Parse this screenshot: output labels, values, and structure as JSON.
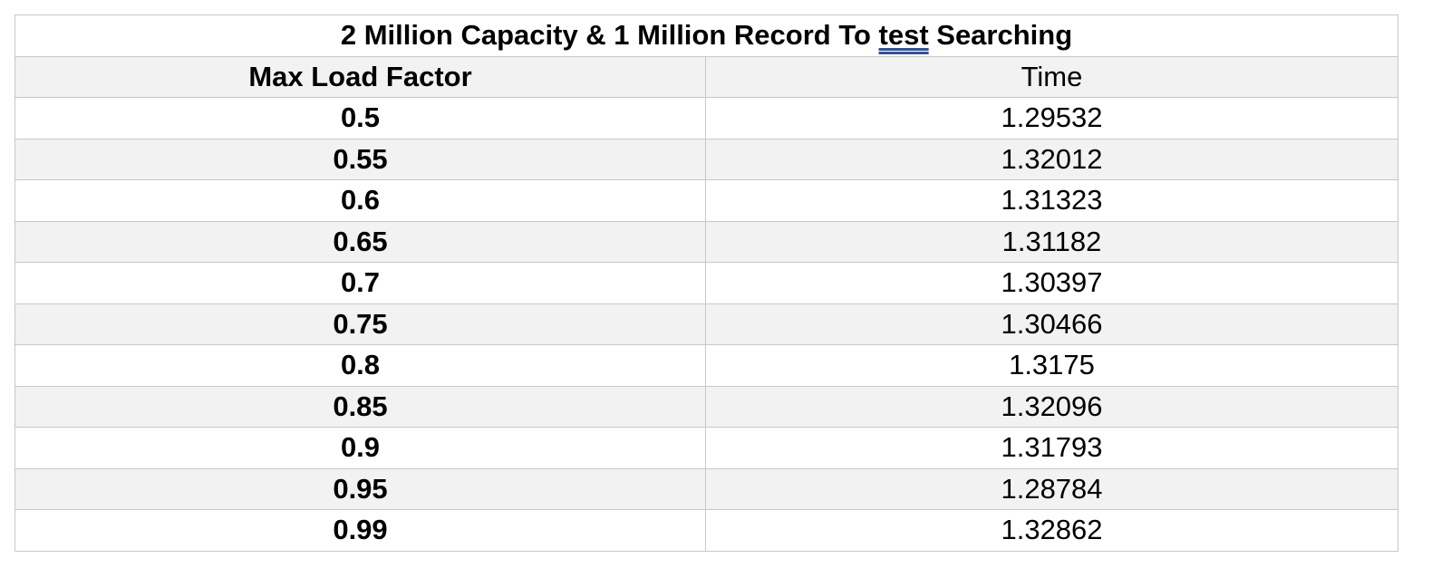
{
  "chart_data": {
    "type": "table",
    "title_parts": [
      "2 Million Capacity & 1 Million Record To ",
      "test",
      " Searching"
    ],
    "columns": [
      "Max Load Factor",
      "Time"
    ],
    "rows": [
      [
        "0.5",
        "1.29532"
      ],
      [
        "0.55",
        "1.32012"
      ],
      [
        "0.6",
        "1.31323"
      ],
      [
        "0.65",
        "1.31182"
      ],
      [
        "0.7",
        "1.30397"
      ],
      [
        "0.75",
        "1.30466"
      ],
      [
        "0.8",
        "1.3175"
      ],
      [
        "0.85",
        "1.32096"
      ],
      [
        "0.9",
        "1.31793"
      ],
      [
        "0.95",
        "1.28784"
      ],
      [
        "0.99",
        "1.32862"
      ]
    ]
  }
}
